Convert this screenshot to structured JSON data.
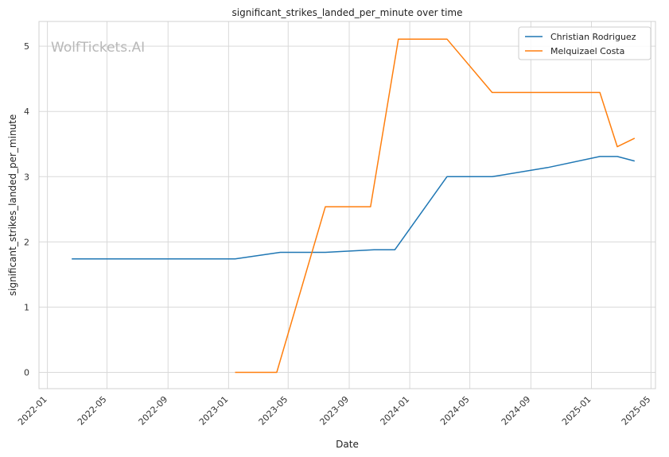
{
  "chart_data": {
    "type": "line",
    "title": "significant_strikes_landed_per_minute over time",
    "xlabel": "Date",
    "ylabel": "significant_strikes_landed_per_minute",
    "watermark": "WolfTickets.AI",
    "x_ticks": [
      "2022-01",
      "2022-05",
      "2022-09",
      "2023-01",
      "2023-05",
      "2023-09",
      "2024-01",
      "2024-05",
      "2024-09",
      "2025-01",
      "2025-05"
    ],
    "y_ticks": [
      "0",
      "1",
      "2",
      "3",
      "4",
      "5"
    ],
    "xlim": [
      "2021-12-15",
      "2025-05-10"
    ],
    "ylim": [
      -0.25,
      5.38
    ],
    "grid": true,
    "legend_position": "top-right",
    "series": [
      {
        "name": "Christian Rodriguez",
        "color": "#1f77b4",
        "x": [
          "2022-02-19",
          "2023-01-14",
          "2023-04-15",
          "2023-07-15",
          "2023-10-21",
          "2023-12-02",
          "2024-03-16",
          "2024-06-15",
          "2024-10-05",
          "2025-01-18",
          "2025-02-22",
          "2025-03-29"
        ],
        "y": [
          1.74,
          1.74,
          1.84,
          1.84,
          1.88,
          1.88,
          3.0,
          3.0,
          3.14,
          3.31,
          3.31,
          3.24
        ]
      },
      {
        "name": "Melquizael Costa",
        "color": "#ff7f0e",
        "x": [
          "2023-01-14",
          "2023-04-08",
          "2023-07-15",
          "2023-10-14",
          "2023-12-09",
          "2024-03-16",
          "2024-06-15",
          "2024-09-28",
          "2025-01-18",
          "2025-02-22",
          "2025-03-29"
        ],
        "y": [
          0.0,
          0.0,
          2.54,
          2.54,
          5.11,
          5.11,
          4.29,
          4.29,
          4.29,
          3.46,
          3.59
        ]
      }
    ]
  }
}
